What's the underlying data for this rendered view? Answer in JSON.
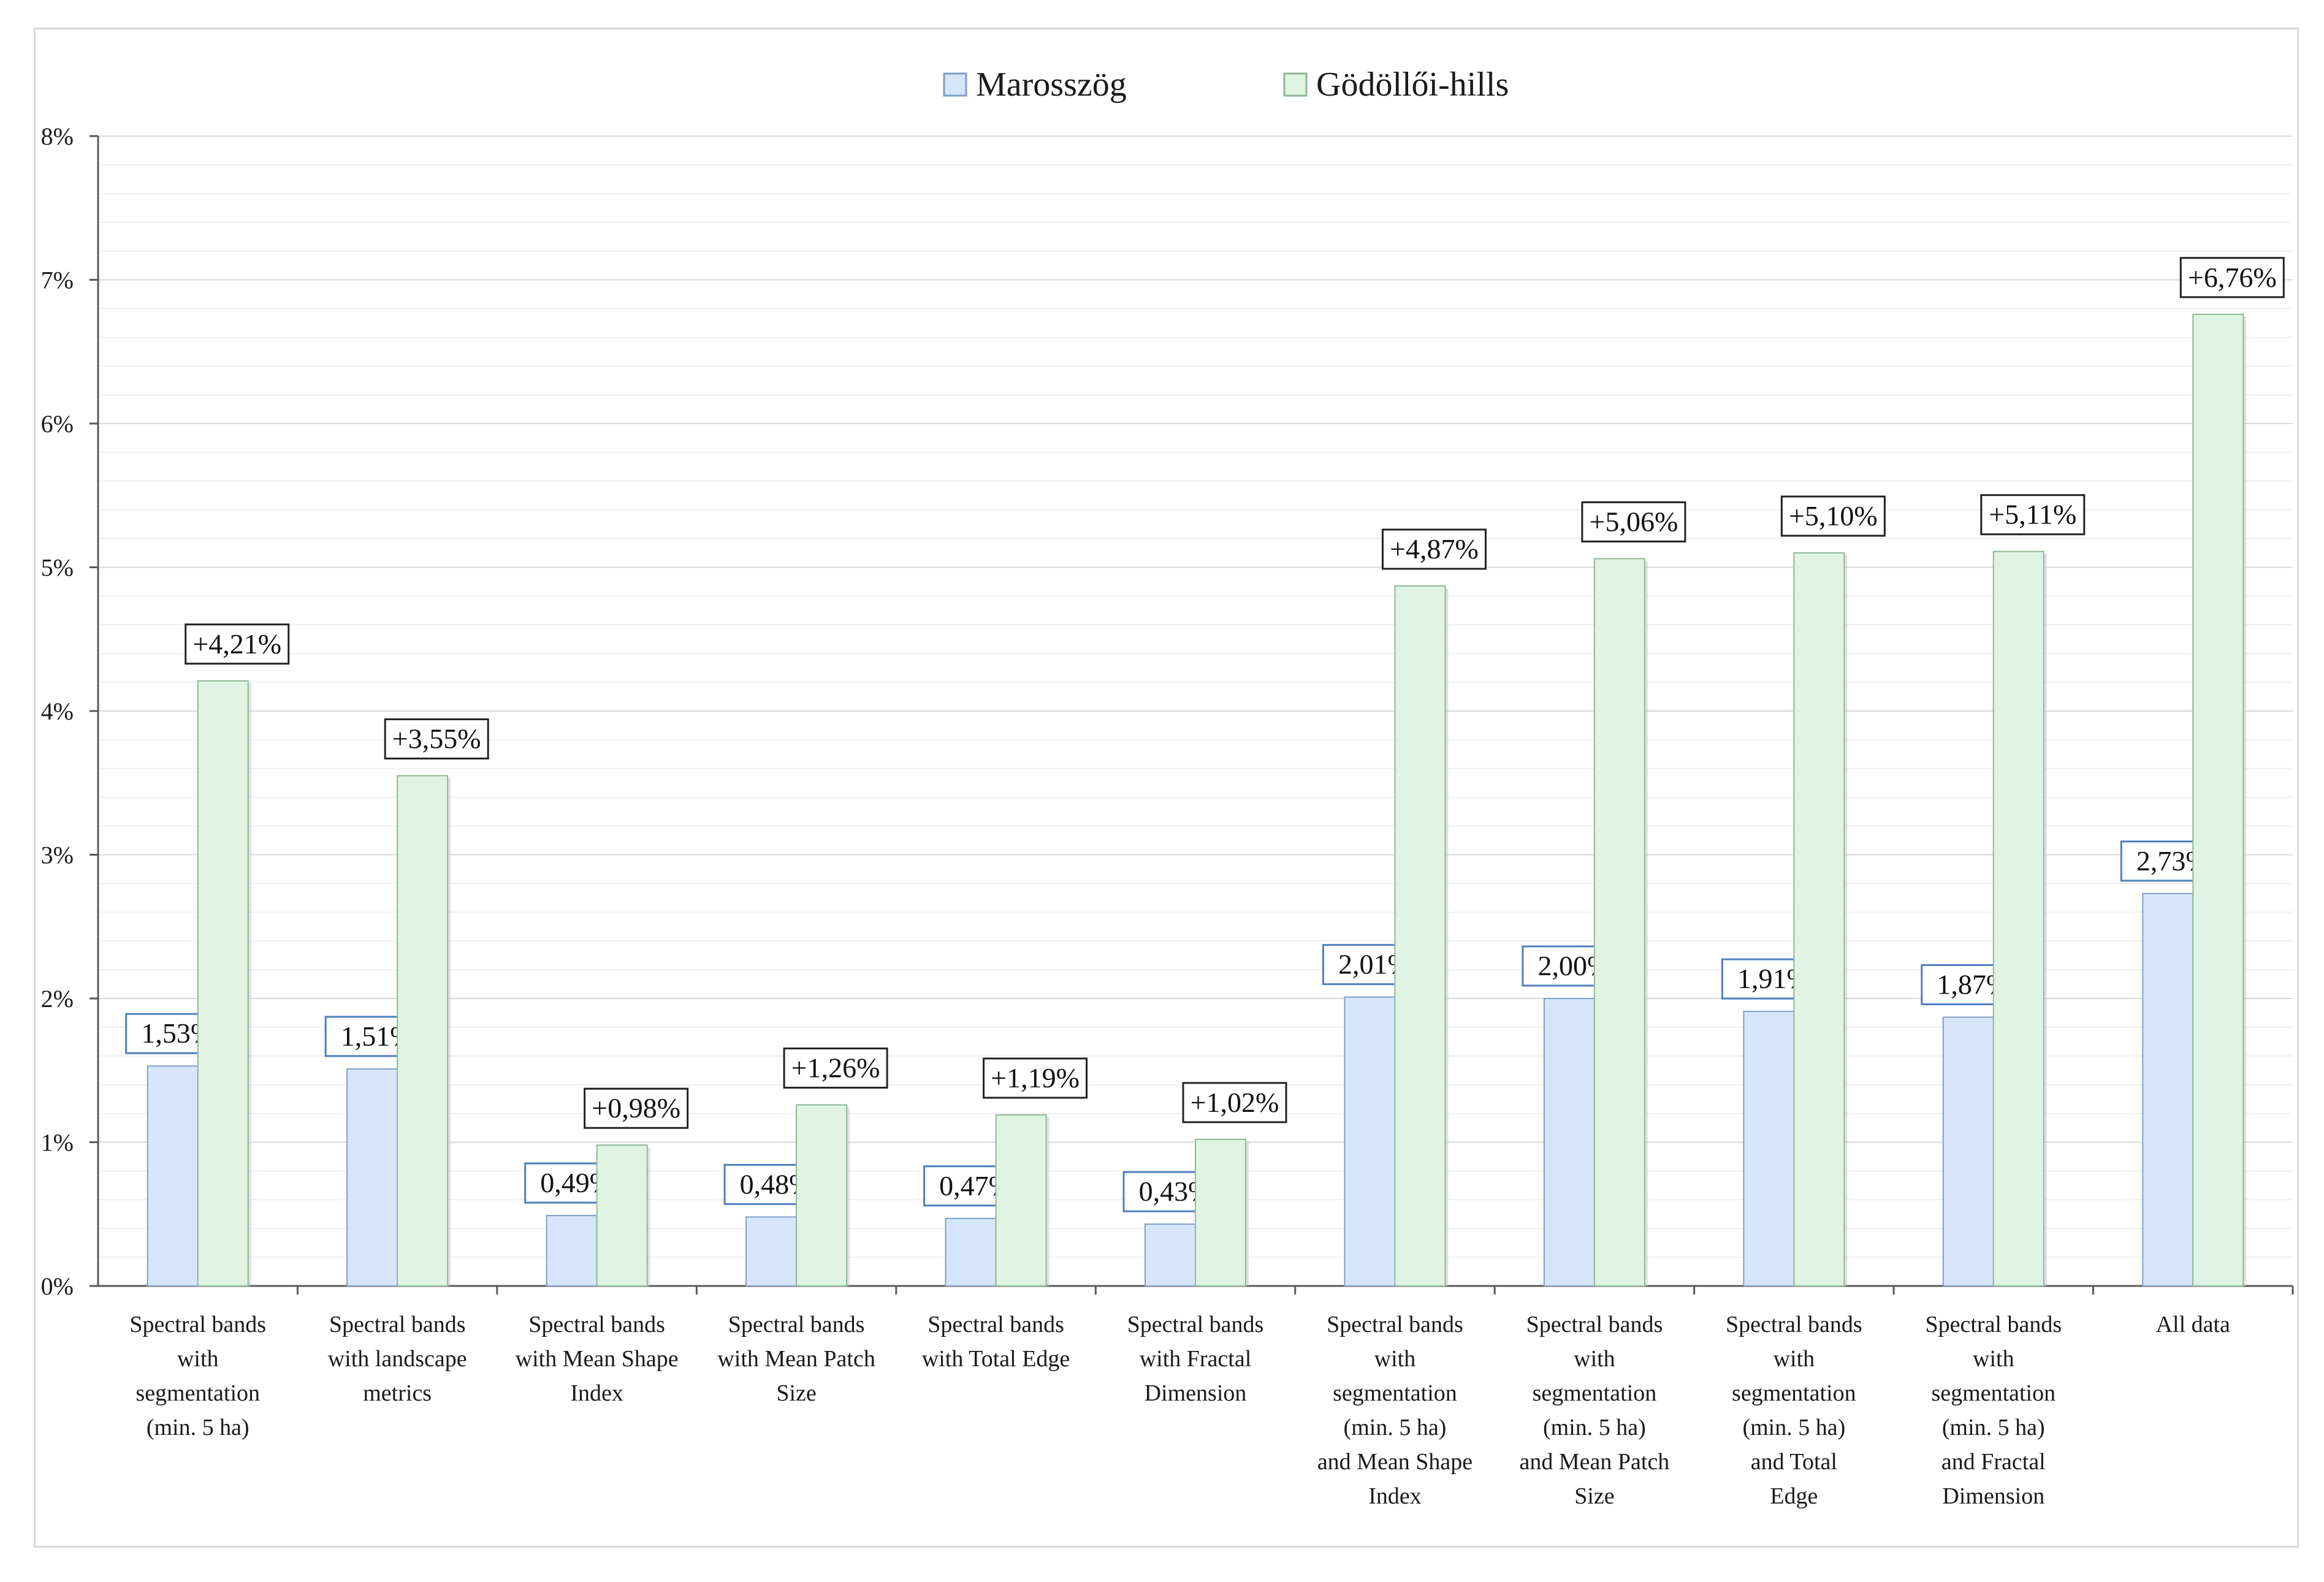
{
  "colors": {
    "series1_fill": "#d6e6fa",
    "series1_stroke": "#7f9fc5",
    "series2_fill": "#dff4e2",
    "series2_stroke": "#8fb896",
    "label1_border": "#4f7fbf",
    "label2_border": "#222222",
    "grid_major": "#d9d9d9",
    "grid_minor": "#efefef",
    "axis": "#595959"
  },
  "chart_data": {
    "type": "bar",
    "title": "",
    "xlabel": "",
    "ylabel": "",
    "ylim": [
      0,
      8
    ],
    "yticks": [
      "0%",
      "1%",
      "2%",
      "3%",
      "4%",
      "5%",
      "6%",
      "7%",
      "8%"
    ],
    "grid": true,
    "minor_grid_step": 0.2,
    "legend_position": "top-center",
    "categories": [
      [
        "Spectral bands",
        "with",
        "segmentation",
        "(min. 5 ha)"
      ],
      [
        "Spectral bands",
        "with landscape",
        "metrics"
      ],
      [
        "Spectral bands",
        "with Mean Shape",
        "Index"
      ],
      [
        "Spectral bands",
        "with Mean Patch",
        "Size"
      ],
      [
        "Spectral bands",
        "with Total Edge"
      ],
      [
        "Spectral bands",
        "with Fractal",
        "Dimension"
      ],
      [
        "Spectral bands",
        "with",
        "segmentation",
        "(min. 5 ha)",
        "and Mean Shape",
        "Index"
      ],
      [
        "Spectral bands",
        "with",
        "segmentation",
        "(min. 5 ha)",
        "and Mean Patch",
        "Size"
      ],
      [
        "Spectral bands",
        "with",
        "segmentation",
        "(min. 5 ha)",
        "and Total",
        "Edge"
      ],
      [
        "Spectral bands",
        "with",
        "segmentation",
        "(min. 5 ha)",
        "and Fractal",
        "Dimension"
      ],
      [
        "All data"
      ]
    ],
    "series": [
      {
        "name": "Marosszög",
        "values": [
          1.53,
          1.51,
          0.49,
          0.48,
          0.47,
          0.43,
          2.01,
          2.0,
          1.91,
          1.87,
          2.73
        ],
        "labels": [
          "1,53%",
          "1,51%",
          "0,49%",
          "0,48%",
          "0,47%",
          "0,43%",
          "2,01%",
          "2,00%",
          "1,91%",
          "1,87%",
          "2,73%"
        ]
      },
      {
        "name": "Gödöllői-hills",
        "values": [
          4.21,
          3.55,
          0.98,
          1.26,
          1.19,
          1.02,
          4.87,
          5.06,
          5.1,
          5.11,
          6.76
        ],
        "labels": [
          "+4,21%",
          "+3,55%",
          "+0,98%",
          "+1,26%",
          "+1,19%",
          "+1,02%",
          "+4,87%",
          "+5,06%",
          "+5,10%",
          "+5,11%",
          "+6,76%"
        ]
      }
    ]
  }
}
